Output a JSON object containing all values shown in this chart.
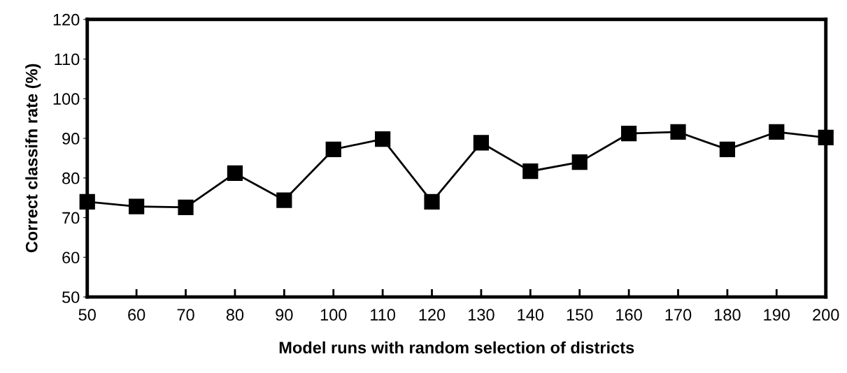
{
  "chart_data": {
    "type": "line",
    "xlabel": "Model runs with random selection of districts",
    "ylabel": "Correct classifn rate (%)",
    "x": [
      50,
      60,
      70,
      80,
      90,
      100,
      110,
      120,
      130,
      140,
      150,
      160,
      170,
      180,
      190,
      200
    ],
    "series": [
      {
        "color": "#000000",
        "values": [
          74.0,
          72.8,
          72.6,
          81.2,
          74.4,
          87.2,
          89.8,
          74.0,
          88.9,
          81.7,
          84.0,
          91.2,
          91.6,
          87.2,
          91.6,
          90.2
        ]
      }
    ],
    "xlim": [
      50,
      200
    ],
    "xticks": [
      50,
      60,
      70,
      80,
      90,
      100,
      110,
      120,
      130,
      140,
      150,
      160,
      170,
      180,
      190,
      200
    ],
    "ylim": [
      50,
      120
    ],
    "yticks": [
      50,
      60,
      70,
      80,
      90,
      100,
      110,
      120
    ],
    "grid": false,
    "marker": "square",
    "line_style": "solid"
  }
}
